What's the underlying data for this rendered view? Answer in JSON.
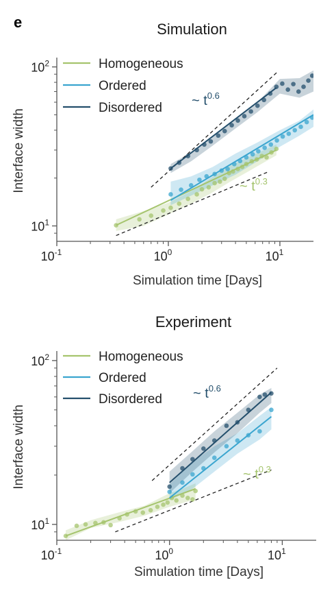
{
  "panel_letter": "e",
  "colors": {
    "homogeneous": "#a5c46d",
    "ordered": "#3aa5cf",
    "disordered": "#244f6c",
    "reference": "#222222"
  },
  "chart_data": [
    {
      "type": "scatter",
      "title": "Simulation",
      "xlabel": "Simulation time [Days]",
      "ylabel": "Interface width",
      "xscale": "log",
      "yscale": "log",
      "xlim": [
        0.1,
        20
      ],
      "ylim": [
        8,
        110
      ],
      "xticks": [
        {
          "value": 0.1,
          "base": "10",
          "exp": "-1"
        },
        {
          "value": 1,
          "base": "10",
          "exp": "0"
        },
        {
          "value": 10,
          "base": "10",
          "exp": "1"
        }
      ],
      "yticks": [
        {
          "value": 10,
          "base": "10",
          "exp": "1"
        },
        {
          "value": 100,
          "base": "10",
          "exp": "2"
        }
      ],
      "legend": {
        "position": "top-left",
        "entries": [
          "Homogeneous",
          "Ordered",
          "Disordered"
        ]
      },
      "series": [
        {
          "name": "Homogeneous",
          "color_key": "homogeneous",
          "points": [
            [
              0.34,
              10.1
            ],
            [
              0.55,
              11.0
            ],
            [
              0.7,
              11.6
            ],
            [
              0.9,
              12.5
            ],
            [
              1.05,
              13.0
            ],
            [
              1.25,
              13.8
            ],
            [
              1.5,
              14.8
            ],
            [
              1.8,
              15.8
            ],
            [
              2.0,
              17.0
            ],
            [
              2.3,
              17.5
            ],
            [
              2.6,
              18.6
            ],
            [
              2.9,
              19.0
            ],
            [
              3.2,
              19.8
            ],
            [
              3.5,
              21.5
            ],
            [
              3.8,
              22.0
            ],
            [
              4.2,
              22.8
            ],
            [
              4.6,
              23.5
            ],
            [
              5.0,
              24.5
            ],
            [
              5.6,
              25.5
            ],
            [
              6.2,
              26.2
            ],
            [
              6.9,
              27.5
            ],
            [
              7.6,
              27.0
            ],
            [
              8.4,
              29.0
            ],
            [
              9.3,
              30.5
            ]
          ],
          "fit": {
            "x": [
              0.34,
              9.3
            ],
            "y": [
              10.1,
              30.0
            ]
          },
          "band": {
            "x": [
              0.34,
              0.6,
              1.0,
              1.6,
              2.4,
              3.6,
              5.5,
              9.3
            ],
            "upper": [
              11.0,
              12.4,
              14.0,
              16.5,
              20.0,
              24.0,
              27.5,
              32.5
            ],
            "lower": [
              9.3,
              10.0,
              11.8,
              13.8,
              16.0,
              19.0,
              22.5,
              27.8
            ]
          }
        },
        {
          "name": "Ordered",
          "color_key": "ordered",
          "points": [
            [
              1.05,
              15.8
            ],
            [
              1.3,
              16.9
            ],
            [
              1.6,
              18.0
            ],
            [
              1.9,
              19.5
            ],
            [
              2.2,
              20.5
            ],
            [
              2.6,
              21.2
            ],
            [
              3.0,
              22.3
            ],
            [
              3.4,
              22.8
            ],
            [
              3.9,
              24.5
            ],
            [
              4.4,
              25.6
            ],
            [
              5.0,
              27.0
            ],
            [
              5.7,
              28.2
            ],
            [
              6.4,
              29.5
            ],
            [
              7.3,
              31.0
            ],
            [
              8.3,
              32.5
            ],
            [
              9.4,
              34.5
            ],
            [
              10.6,
              36.5
            ],
            [
              12.0,
              38.0
            ],
            [
              13.6,
              40.0
            ],
            [
              15.4,
              42.0
            ],
            [
              17.4,
              45.0
            ],
            [
              19.5,
              48.0
            ]
          ],
          "fit": {
            "x": [
              1.05,
              20
            ],
            "y": [
              14.5,
              50.0
            ]
          },
          "band": {
            "x": [
              1.05,
              1.6,
              2.5,
              4.0,
              6.3,
              10.0,
              15.0,
              20.0
            ],
            "upper": [
              19.0,
              20.5,
              23.5,
              28.5,
              33.5,
              40.0,
              46.0,
              54.0
            ],
            "lower": [
              13.5,
              15.5,
              18.0,
              21.0,
              25.5,
              31.5,
              37.0,
              42.0
            ]
          }
        },
        {
          "name": "Disordered",
          "color_key": "disordered",
          "points": [
            [
              1.05,
              23.0
            ],
            [
              1.25,
              25.0
            ],
            [
              1.5,
              27.5
            ],
            [
              1.8,
              30.0
            ],
            [
              2.1,
              32.5
            ],
            [
              2.4,
              34.0
            ],
            [
              2.8,
              37.0
            ],
            [
              3.2,
              39.5
            ],
            [
              3.7,
              43.0
            ],
            [
              4.2,
              46.0
            ],
            [
              4.8,
              49.0
            ],
            [
              5.5,
              52.5
            ],
            [
              6.3,
              57.0
            ],
            [
              7.2,
              62.0
            ],
            [
              8.2,
              68.0
            ],
            [
              9.3,
              75.0
            ],
            [
              10.5,
              78.5
            ],
            [
              11.8,
              72.0
            ],
            [
              13.2,
              78.0
            ],
            [
              14.7,
              70.0
            ],
            [
              16.3,
              75.0
            ],
            [
              18.0,
              82.0
            ],
            [
              19.5,
              88.0
            ]
          ],
          "fit": {
            "x": [
              1.05,
              9.3
            ],
            "y": [
              23.0,
              74.0
            ]
          },
          "band": {
            "x": [
              1.05,
              1.6,
              2.5,
              4.0,
              6.3,
              10.0,
              15.0,
              20.0
            ],
            "upper": [
              24.5,
              29.0,
              36.5,
              47.0,
              60.0,
              84.0,
              85.0,
              95.0
            ],
            "lower": [
              21.5,
              25.5,
              32.0,
              41.0,
              52.0,
              68.0,
              64.0,
              70.0
            ]
          }
        }
      ],
      "reference_lines": [
        {
          "label": "~ t",
          "exponent": "0.6",
          "color_key": "disordered",
          "x": [
            0.7,
            9.5
          ],
          "y": [
            17.5,
            93.0
          ]
        },
        {
          "label": "~ t",
          "exponent": "0.3",
          "color_key": "homogeneous",
          "x": [
            0.34,
            8.0
          ],
          "y": [
            8.7,
            22.0
          ]
        }
      ]
    },
    {
      "type": "scatter",
      "title": "Experiment",
      "xlabel": "Simulation time [Days]",
      "ylabel": "Interface width",
      "xscale": "log",
      "yscale": "log",
      "xlim": [
        0.1,
        20
      ],
      "ylim": [
        8,
        110
      ],
      "xticks": [
        {
          "value": 0.1,
          "base": "10",
          "exp": "-1"
        },
        {
          "value": 1,
          "base": "10",
          "exp": "0"
        },
        {
          "value": 10,
          "base": "10",
          "exp": "1"
        }
      ],
      "yticks": [
        {
          "value": 10,
          "base": "10",
          "exp": "1"
        },
        {
          "value": 100,
          "base": "10",
          "exp": "2"
        }
      ],
      "legend": {
        "position": "top-left",
        "entries": [
          "Homogeneous",
          "Ordered",
          "Disordered"
        ]
      },
      "series": [
        {
          "name": "Homogeneous",
          "color_key": "homogeneous",
          "points": [
            [
              0.12,
              8.5
            ],
            [
              0.15,
              9.8
            ],
            [
              0.18,
              10.0
            ],
            [
              0.22,
              10.2
            ],
            [
              0.26,
              10.3
            ],
            [
              0.3,
              9.9
            ],
            [
              0.36,
              10.9
            ],
            [
              0.42,
              11.5
            ],
            [
              0.5,
              12.0
            ],
            [
              0.58,
              11.8
            ],
            [
              0.68,
              12.2
            ],
            [
              0.78,
              12.8
            ],
            [
              0.88,
              13.2
            ],
            [
              0.96,
              13.6
            ],
            [
              1.05,
              14.5
            ],
            [
              1.15,
              14.0
            ],
            [
              1.3,
              15.0
            ],
            [
              1.45,
              14.5
            ],
            [
              1.6,
              14.2
            ],
            [
              1.7,
              16.0
            ]
          ],
          "fit": {
            "x": [
              0.12,
              1.7
            ],
            "y": [
              8.5,
              16.5
            ]
          },
          "band": {
            "x": [
              0.12,
              0.2,
              0.35,
              0.6,
              1.0,
              1.3,
              1.7
            ],
            "upper": [
              9.2,
              10.6,
              11.8,
              13.0,
              15.5,
              16.5,
              17.8
            ],
            "lower": [
              8.0,
              9.5,
              10.3,
              11.3,
              12.8,
              13.5,
              14.2
            ]
          }
        },
        {
          "name": "Ordered",
          "color_key": "ordered",
          "points": [
            [
              1.0,
              15.8
            ],
            [
              1.3,
              18.0
            ],
            [
              1.6,
              20.2
            ],
            [
              2.0,
              22.0
            ],
            [
              2.5,
              25.5
            ],
            [
              3.2,
              30.0
            ],
            [
              4.0,
              32.5
            ],
            [
              5.0,
              35.0
            ],
            [
              6.3,
              37.0
            ],
            [
              8.0,
              50.0
            ]
          ],
          "fit": {
            "x": [
              1.0,
              8.0
            ],
            "y": [
              14.5,
              45.5
            ]
          },
          "band": {
            "x": [
              1.0,
              1.6,
              2.5,
              4.0,
              6.3,
              8.0
            ],
            "upper": [
              17.5,
              24.0,
              30.0,
              36.0,
              46.0,
              52.0
            ],
            "lower": [
              14.0,
              16.5,
              21.0,
              27.0,
              33.0,
              38.0
            ]
          }
        },
        {
          "name": "Disordered",
          "color_key": "disordered",
          "points": [
            [
              1.0,
              17.0
            ],
            [
              1.3,
              22.0
            ],
            [
              1.6,
              25.0
            ],
            [
              2.0,
              29.0
            ],
            [
              2.5,
              32.5
            ],
            [
              3.2,
              40.0
            ],
            [
              4.0,
              42.0
            ],
            [
              5.0,
              50.0
            ],
            [
              6.3,
              60.0
            ],
            [
              7.0,
              62.0
            ],
            [
              8.0,
              63.0
            ]
          ],
          "fit": {
            "x": [
              1.0,
              8.0
            ],
            "y": [
              18.0,
              64.0
            ]
          },
          "band": {
            "x": [
              1.0,
              1.6,
              2.5,
              4.0,
              6.3,
              8.0
            ],
            "upper": [
              21.0,
              28.0,
              37.0,
              48.0,
              62.0,
              68.0
            ],
            "lower": [
              15.5,
              21.0,
              27.5,
              36.0,
              48.0,
              55.0
            ]
          }
        }
      ],
      "reference_lines": [
        {
          "label": "~ t",
          "exponent": "0.6",
          "color_key": "disordered",
          "x": [
            0.7,
            9.0
          ],
          "y": [
            18.5,
            90.0
          ]
        },
        {
          "label": "~ t",
          "exponent": "0.3",
          "color_key": "homogeneous",
          "x": [
            0.33,
            8.0
          ],
          "y": [
            9.0,
            21.5
          ]
        }
      ]
    }
  ]
}
